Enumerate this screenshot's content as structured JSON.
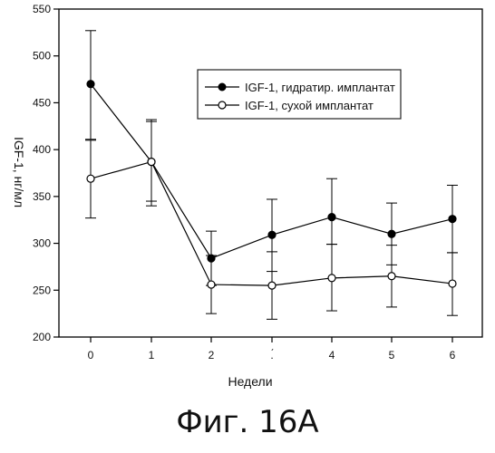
{
  "chart_data": {
    "type": "line",
    "xlabel": "Недели",
    "ylabel": "IGF-1, нг/мл",
    "x": [
      0,
      1,
      2,
      3,
      4,
      5,
      6
    ],
    "x_tick_labels": [
      "0",
      "1",
      "2",
      ".́",
      "4",
      "5",
      "6"
    ],
    "y_ticks": [
      200,
      250,
      300,
      350,
      400,
      450,
      500,
      550
    ],
    "ylim": [
      200,
      550
    ],
    "grid": false,
    "legend_position": "top-right",
    "series": [
      {
        "name": "IGF-1, гидратир. имплантат",
        "marker": "filled-circle",
        "color": "#000000",
        "values": [
          470,
          387,
          284,
          309,
          328,
          310,
          326
        ],
        "err_low": [
          411,
          345,
          255,
          270,
          299,
          277,
          290
        ],
        "err_high": [
          527,
          430,
          313,
          347,
          369,
          343,
          362
        ]
      },
      {
        "name": "IGF-1, сухой имплантат",
        "marker": "open-circle",
        "color": "#000000",
        "values": [
          369,
          387,
          256,
          255,
          263,
          265,
          257
        ],
        "err_low": [
          327,
          340,
          225,
          219,
          228,
          232,
          223
        ],
        "err_high": [
          410,
          432,
          287,
          291,
          299,
          298,
          290
        ]
      }
    ]
  },
  "caption": "Фиг. 16А"
}
